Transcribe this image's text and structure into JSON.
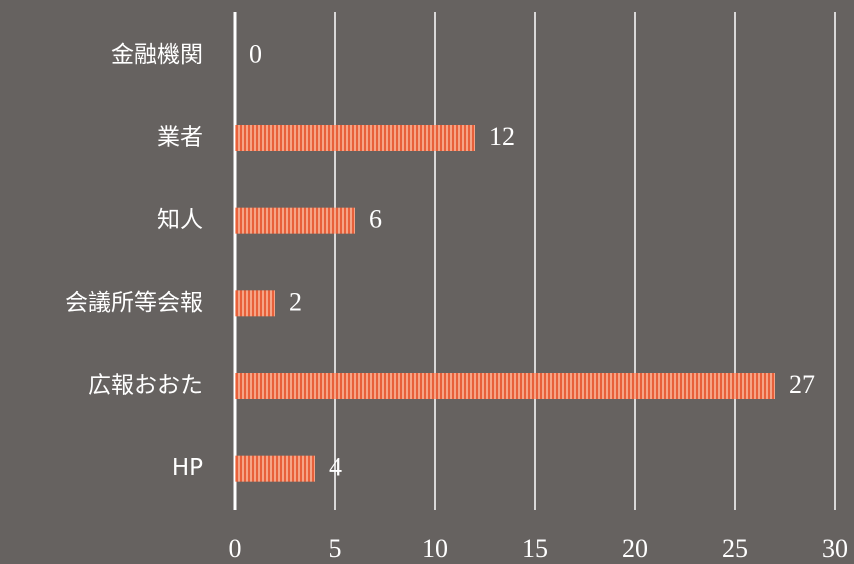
{
  "chart_data": {
    "type": "barh",
    "categories": [
      "金融機関",
      "業者",
      "知人",
      "会議所等会報",
      "広報おおた",
      "HP"
    ],
    "values": [
      0,
      12,
      6,
      2,
      27,
      4
    ],
    "color": "#e8603a",
    "xlim": [
      0,
      30
    ],
    "xticks": [
      0,
      5,
      10,
      15,
      20,
      25,
      30
    ],
    "grid": true
  }
}
